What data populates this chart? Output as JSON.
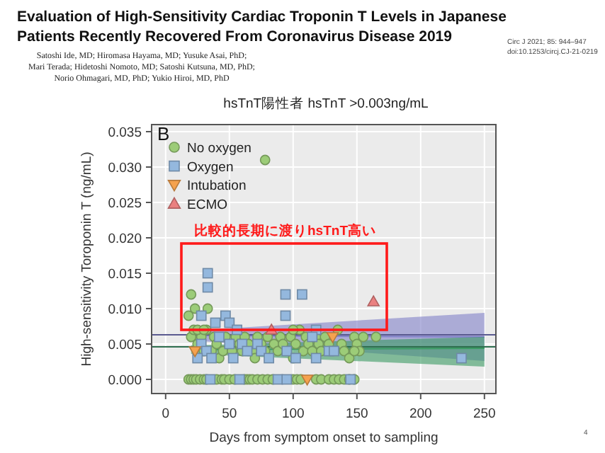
{
  "chart_data": {
    "type": "scatter",
    "title": "Evaluation of High-Sensitivity Cardiac Troponin T Levels in Japanese Patients Recently Recovered From Coronavirus Disease 2019",
    "subtitle": "hsTnT陽性者  hsTnT >0.003ng/mL",
    "xlabel": "Days from symptom onset to sampling",
    "ylabel": "High-sensitivity Toroponin T (ng/mL)",
    "annotations": [
      "B",
      "Satoshi Ide, MD; Hiromasa Hayama, MD; Yusuke Asai, PhD;",
      "Mari Terada; Hidetoshi Nomoto, MD; Satoshi Kutsuna, MD, PhD;",
      "Norio Ohmagari, MD, PhD; Yukio Hiroi, MD, PhD",
      "Circ J 2021; 85: 944–947",
      "doi:10.1253/circj.CJ-21-0219",
      "比較的長期に渡りhsTnT高い",
      "4"
    ],
    "xlim": [
      -11,
      259
    ],
    "ylim": [
      -0.002,
      0.036
    ],
    "xticks": [
      0,
      50,
      100,
      150,
      200,
      250
    ],
    "yticks": [
      {
        "value": 0,
        "label": "0.000"
      },
      {
        "value": 0.005,
        "label": "0.005"
      },
      {
        "value": 0.01,
        "label": "0.010"
      },
      {
        "value": 0.015,
        "label": "0.015"
      },
      {
        "value": 0.02,
        "label": "0.020"
      },
      {
        "value": 0.025,
        "label": "0.025"
      },
      {
        "value": 0.03,
        "label": "0.030"
      },
      {
        "value": 0.035,
        "label": "0.035"
      }
    ],
    "grid": true,
    "legend": "top left",
    "ref_lines": [
      {
        "axis": "y",
        "value": 0.0063,
        "color": "#5a5a90"
      },
      {
        "axis": "y",
        "value": 0.0046,
        "color": "#2e6e4e"
      }
    ],
    "series": [
      {
        "type": "line",
        "color": "#8080c8",
        "x": [
          20,
          250
        ],
        "values": [
          0.0062,
          0.006
        ],
        "lower": [
          0.0055,
          0.0026
        ],
        "upper": [
          0.0069,
          0.0094
        ]
      },
      {
        "type": "line",
        "color": "#3a9a62",
        "x": [
          20,
          250
        ],
        "values": [
          0.0042,
          0.0044
        ],
        "lower": [
          0.0036,
          0.0018
        ],
        "upper": [
          0.0048,
          0.006
        ]
      },
      {
        "name": "No oxygen",
        "color": "#9ccc78",
        "marker": "circle",
        "x": [
          18,
          20,
          22,
          24,
          27,
          30,
          32,
          40,
          44,
          46,
          50,
          54,
          62,
          64,
          66,
          68,
          72,
          76,
          80,
          84,
          100,
          103,
          106,
          118,
          122,
          128,
          132,
          136,
          140,
          144,
          148,
          20,
          22,
          25,
          28,
          30,
          32,
          36,
          38,
          40,
          42,
          45,
          47,
          52,
          55,
          58,
          60,
          62,
          65,
          68,
          70,
          72,
          75,
          78,
          80,
          85,
          88,
          90,
          92,
          98,
          100,
          102,
          105,
          108,
          110,
          112,
          115,
          118,
          120,
          122,
          125,
          128,
          135,
          138,
          140,
          144,
          148,
          150,
          152,
          155,
          165,
          148,
          20,
          23,
          33,
          18,
          78,
          25,
          30,
          100
        ],
        "values": [
          0,
          0,
          0,
          0,
          0,
          0,
          0,
          0,
          0,
          0,
          0,
          0,
          0,
          0,
          0,
          0,
          0,
          0,
          0,
          0,
          0,
          0,
          0,
          0,
          0,
          0,
          0,
          0,
          0,
          0,
          0,
          0.006,
          0.007,
          0.005,
          0.006,
          0.004,
          0.007,
          0.004,
          0.006,
          0.005,
          0.003,
          0.004,
          0.006,
          0.004,
          0.006,
          0.005,
          0.004,
          0.006,
          0.005,
          0.004,
          0.003,
          0.006,
          0.005,
          0.004,
          0.006,
          0.005,
          0.004,
          0.006,
          0.005,
          0.006,
          0.003,
          0.005,
          0.007,
          0.004,
          0.006,
          0.005,
          0.004,
          0.006,
          0.005,
          0.004,
          0.006,
          0.005,
          0.007,
          0.005,
          0.004,
          0.003,
          0.006,
          0.005,
          0.004,
          0.006,
          0.006,
          0.004,
          0.012,
          0.01,
          0.01,
          0.009,
          0.031,
          0.007,
          0.007,
          0.007
        ]
      },
      {
        "name": "Oxygen",
        "color": "#94b8de",
        "marker": "square",
        "x": [
          28,
          33,
          33,
          39,
          47,
          50,
          56,
          94,
          94,
          107,
          118,
          42,
          28,
          32,
          25,
          36,
          50,
          53,
          60,
          64,
          72,
          75,
          81,
          95,
          102,
          115,
          128,
          132,
          118,
          232,
          35,
          58,
          88,
          95,
          145
        ],
        "values": [
          0.009,
          0.013,
          0.015,
          0.008,
          0.009,
          0.008,
          0.007,
          0.009,
          0.012,
          0.012,
          0.007,
          0.006,
          0.005,
          0.004,
          0.003,
          0.003,
          0.005,
          0.003,
          0.005,
          0.004,
          0.005,
          0.004,
          0.003,
          0.004,
          0.003,
          0.006,
          0.004,
          0.004,
          0.003,
          0.003,
          0,
          0,
          0,
          0,
          0
        ]
      },
      {
        "name": "Intubation",
        "color": "#f5a24e",
        "marker": "triangle_down",
        "x": [
          23,
          131,
          111
        ],
        "values": [
          0.004,
          0.006,
          0
        ]
      },
      {
        "name": "ECMO",
        "color": "#ea8080",
        "marker": "triangle",
        "x": [
          83,
          163
        ],
        "values": [
          0.007,
          0.011
        ]
      }
    ]
  }
}
